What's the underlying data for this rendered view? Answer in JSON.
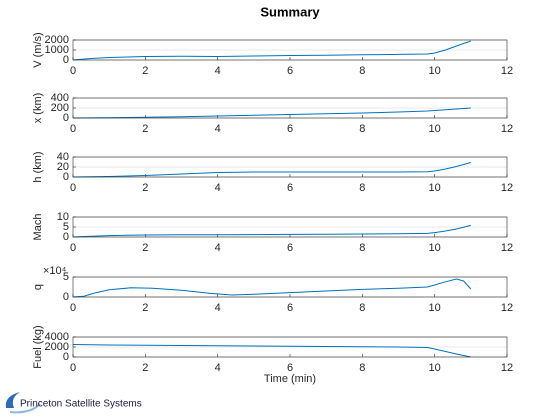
{
  "chart_data": [
    {
      "type": "line",
      "title": "Summary",
      "ylabel": "V (m/s)",
      "x": [
        0,
        0.5,
        1,
        2,
        3,
        4,
        5,
        6,
        7,
        8,
        9,
        9.8,
        10,
        10.3,
        10.6,
        11
      ],
      "series": [
        {
          "color": "#0072bd",
          "values": [
            0,
            150,
            250,
            350,
            380,
            350,
            400,
            450,
            480,
            520,
            560,
            600,
            700,
            1000,
            1400,
            1900
          ]
        }
      ],
      "xlim": [
        0,
        12
      ],
      "xticks": [
        0,
        2,
        4,
        6,
        8,
        10,
        12
      ],
      "ylim": [
        0,
        2000
      ],
      "yticks": [
        0,
        1000,
        2000
      ],
      "grid": true
    },
    {
      "type": "line",
      "ylabel": "x (km)",
      "x": [
        0,
        0.5,
        1,
        2,
        3,
        4,
        5,
        6,
        7,
        8,
        9,
        9.8,
        10,
        10.3,
        10.6,
        11
      ],
      "series": [
        {
          "color": "#0072bd",
          "values": [
            0,
            2,
            5,
            15,
            25,
            40,
            55,
            70,
            85,
            100,
            120,
            140,
            150,
            165,
            180,
            200
          ]
        }
      ],
      "xlim": [
        0,
        12
      ],
      "xticks": [
        0,
        2,
        4,
        6,
        8,
        10,
        12
      ],
      "ylim": [
        0,
        400
      ],
      "yticks": [
        0,
        200,
        400
      ],
      "grid": true
    },
    {
      "type": "line",
      "ylabel": "h (km)",
      "x": [
        0,
        0.5,
        1,
        2,
        3,
        4,
        5,
        6,
        7,
        8,
        9,
        9.8,
        10,
        10.3,
        10.6,
        11
      ],
      "series": [
        {
          "color": "#0072bd",
          "values": [
            0,
            0.5,
            1,
            3,
            6,
            9,
            10,
            10,
            10,
            10,
            10,
            10.5,
            12,
            16,
            21,
            29
          ]
        }
      ],
      "xlim": [
        0,
        12
      ],
      "xticks": [
        0,
        2,
        4,
        6,
        8,
        10,
        12
      ],
      "ylim": [
        0,
        40
      ],
      "yticks": [
        0,
        20,
        40
      ],
      "grid": true
    },
    {
      "type": "line",
      "ylabel": "Mach",
      "x": [
        0,
        0.5,
        1,
        2,
        3,
        4,
        5,
        6,
        7,
        8,
        9,
        9.8,
        10,
        10.3,
        10.6,
        11
      ],
      "series": [
        {
          "color": "#0072bd",
          "values": [
            0,
            0.4,
            0.7,
            1,
            1.1,
            1.1,
            1.2,
            1.3,
            1.4,
            1.5,
            1.6,
            1.8,
            2.2,
            3,
            4,
            5.8
          ]
        }
      ],
      "xlim": [
        0,
        12
      ],
      "xticks": [
        0,
        2,
        4,
        6,
        8,
        10,
        12
      ],
      "ylim": [
        0,
        10
      ],
      "yticks": [
        0,
        5,
        10
      ],
      "grid": true
    },
    {
      "type": "line",
      "ylabel": "q",
      "y_exponent_label": "×10⁴",
      "x": [
        0,
        0.3,
        0.6,
        1,
        1.6,
        2.2,
        3,
        3.8,
        4.4,
        5,
        6,
        7,
        8,
        9,
        9.8,
        10,
        10.3,
        10.6,
        10.8,
        11
      ],
      "series": [
        {
          "color": "#0072bd",
          "values": [
            0,
            2000,
            10000,
            18000,
            23000,
            22000,
            17000,
            9000,
            5000,
            7000,
            11000,
            15000,
            19000,
            22000,
            25000,
            30000,
            38000,
            45000,
            40000,
            20000
          ]
        }
      ],
      "xlim": [
        0,
        12
      ],
      "xticks": [
        0,
        2,
        4,
        6,
        8,
        10,
        12
      ],
      "ylim": [
        0,
        50000
      ],
      "yticks": [
        0,
        {
          "value": 50000,
          "label": "5"
        }
      ],
      "grid": true
    },
    {
      "type": "line",
      "ylabel": "Fuel (kg)",
      "xlabel": "Time (min)",
      "x": [
        0,
        0.5,
        1,
        2,
        3,
        4,
        5,
        6,
        7,
        8,
        9,
        9.8,
        10,
        10.3,
        10.6,
        11
      ],
      "series": [
        {
          "color": "#0072bd",
          "values": [
            2500,
            2450,
            2400,
            2350,
            2300,
            2250,
            2200,
            2150,
            2100,
            2050,
            2000,
            1900,
            1600,
            1100,
            600,
            0
          ]
        }
      ],
      "xlim": [
        0,
        12
      ],
      "xticks": [
        0,
        2,
        4,
        6,
        8,
        10,
        12
      ],
      "ylim": [
        0,
        4000
      ],
      "yticks": [
        0,
        2000,
        4000
      ],
      "grid": true
    }
  ],
  "logo": "Princeton Satellite Systems"
}
